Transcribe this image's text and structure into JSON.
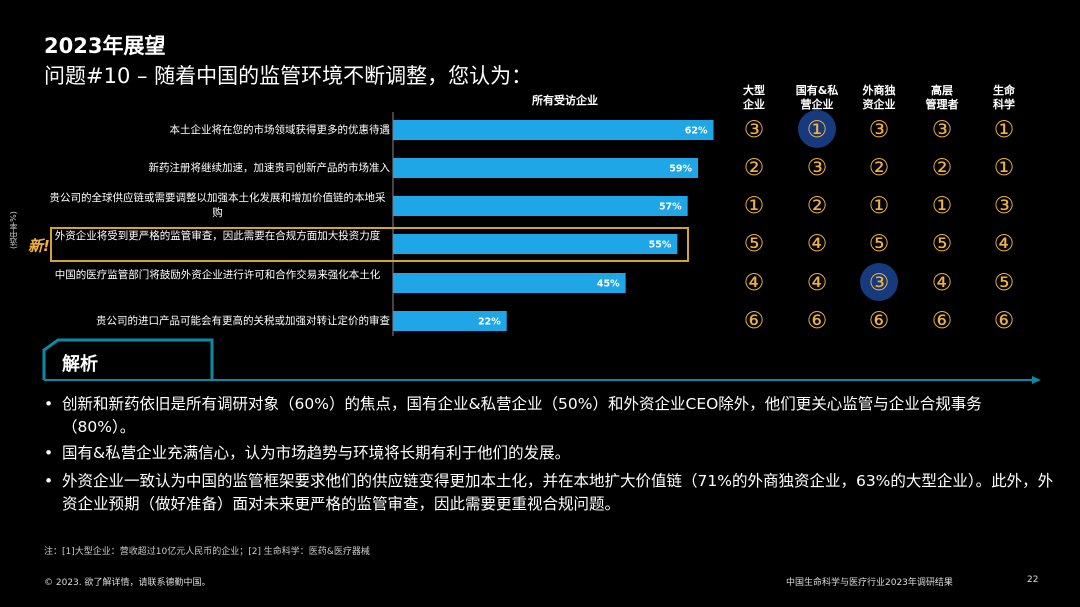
{
  "header": {
    "title": "2023年展望",
    "subtitle": "问题#10 – 随着中国的监管环境不断调整，您认为："
  },
  "chart_data": {
    "type": "bar",
    "orientation": "horizontal",
    "series_header": "所有受访企业",
    "ylabel": "(选中率%)",
    "xlim": [
      0,
      100
    ],
    "categories": [
      "本土企业将在您的市场领域获得更多的优惠待遇",
      "新药注册将继续加速，加速贵司创新产品的市场准入",
      "贵公司的全球供应链或需要调整以加强本土化发展和增加价值链的本地采购",
      "外资企业将受到更严格的监管审查，因此需要在合规方面加大投资力度",
      "中国的医疗监管部门将鼓励外资企业进行许可和合作交易来强化本土化",
      "贵公司的进口产品可能会有更高的关税或加强对转让定价的审查"
    ],
    "values": [
      62,
      59,
      57,
      55,
      45,
      22
    ],
    "value_labels": [
      "62%",
      "59%",
      "57%",
      "55%",
      "45%",
      "22%"
    ],
    "bar_color": "#1ea6e6",
    "new_tag": "新!",
    "highlighted_row": 3,
    "segments": [
      {
        "name": "大型\n企业",
        "ranks": [
          "③",
          "②",
          "①",
          "⑤",
          "④",
          "⑥"
        ],
        "highlight": []
      },
      {
        "name": "国有&私\n营企业",
        "ranks": [
          "①",
          "③",
          "②",
          "④",
          "④",
          "⑥"
        ],
        "highlight": [
          0
        ]
      },
      {
        "name": "外商独\n资企业",
        "ranks": [
          "③",
          "②",
          "①",
          "⑤",
          "③",
          "⑥"
        ],
        "highlight": [
          4
        ]
      },
      {
        "name": "高层\n管理者",
        "ranks": [
          "③",
          "②",
          "①",
          "⑤",
          "④",
          "⑥"
        ],
        "highlight": []
      },
      {
        "name": "生命\n科学",
        "ranks": [
          "①",
          "①",
          "③",
          "④",
          "⑤",
          "⑥"
        ],
        "highlight": []
      }
    ],
    "rank_color": "#f0b23c"
  },
  "analysis": {
    "title": "解析",
    "bullets": [
      "创新和新药依旧是所有调研对象（60%）的焦点，国有企业&私营企业（50%）和外资企业CEO除外，他们更关心监管与企业合规事务（80%）。",
      "国有&私营企业充满信心，认为市场趋势与环境将长期有利于他们的发展。",
      "外资企业一致认为中国的监管框架要求他们的供应链变得更加本土化，并在本地扩大价值链（71%的外商独资企业，63%的大型企业）。此外，外资企业预期（做好准备）面对未来更严格的监管审查，因此需要更重视合规问题。"
    ]
  },
  "footer": {
    "footnote": "注：[1]大型企业：营收超过10亿元人民币的企业；[2] 生命科学：医药&医疗器械",
    "copyright": "© 2023. 欲了解详情，请联系德勤中国。",
    "report_title": "中国生命科学与医疗行业2023年调研结果",
    "page": "22"
  },
  "colors": {
    "background": "#000000",
    "accent_teal": "#0b8aa6",
    "highlight_box": "#d4a52a",
    "circle_highlight": "#173a7e"
  }
}
